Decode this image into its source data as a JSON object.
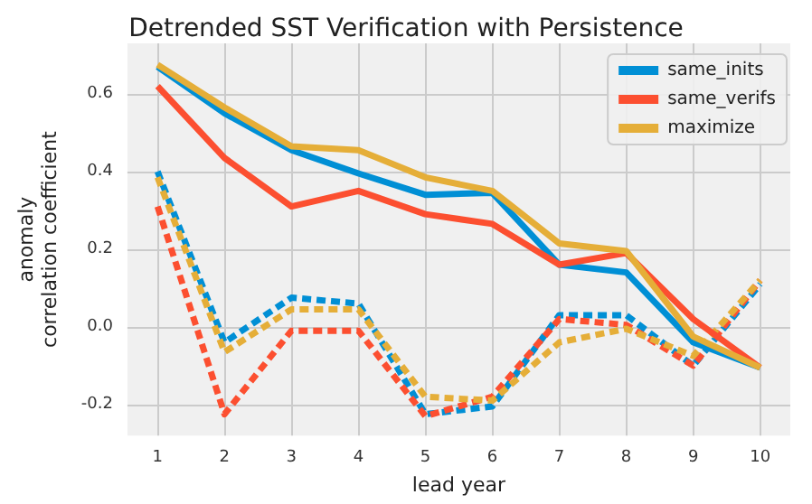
{
  "chart_data": {
    "type": "line",
    "title": "Detrended SST Verification with Persistence",
    "xlabel": "lead year",
    "ylabel": "anomaly\ncorrelation coefficient",
    "x": [
      1,
      2,
      3,
      4,
      5,
      6,
      7,
      8,
      9,
      10
    ],
    "xlim": [
      0.55,
      10.45
    ],
    "xticks": [
      1,
      2,
      3,
      4,
      5,
      6,
      7,
      8,
      9,
      10
    ],
    "ylim": [
      -0.28,
      0.73
    ],
    "yticks": [
      {
        "value": -0.2,
        "label": "-0.2"
      },
      {
        "value": 0,
        "label": "0.0"
      },
      {
        "value": 0.2,
        "label": "0.2"
      },
      {
        "value": 0.4,
        "label": "0.4"
      },
      {
        "value": 0.6,
        "label": "0.6"
      }
    ],
    "grid": true,
    "legend": "top right",
    "marker": "none",
    "series": [
      {
        "name": "same_inits",
        "color": "#008fd5",
        "line_style": "solid",
        "values": [
          0.67,
          0.55,
          0.455,
          0.395,
          0.34,
          0.345,
          0.16,
          0.14,
          -0.04,
          -0.105
        ]
      },
      {
        "name": "same_verifs",
        "color": "#fc4f30",
        "line_style": "solid",
        "values": [
          0.62,
          0.435,
          0.31,
          0.35,
          0.29,
          0.265,
          0.16,
          0.19,
          0.02,
          -0.105
        ]
      },
      {
        "name": "maximize",
        "color": "#e5ae38",
        "line_style": "solid",
        "values": [
          0.675,
          0.565,
          0.465,
          0.455,
          0.385,
          0.35,
          0.215,
          0.195,
          -0.025,
          -0.105
        ]
      },
      {
        "color": "#008fd5",
        "line_style": "dashed",
        "values": [
          0.4,
          -0.04,
          0.075,
          0.06,
          -0.225,
          -0.205,
          0.03,
          0.03,
          -0.1,
          0.11
        ]
      },
      {
        "color": "#fc4f30",
        "line_style": "dashed",
        "values": [
          0.31,
          -0.225,
          -0.01,
          -0.01,
          -0.23,
          -0.18,
          0.02,
          0.005,
          -0.1,
          0.12
        ]
      },
      {
        "color": "#e5ae38",
        "line_style": "dashed",
        "values": [
          0.385,
          -0.065,
          0.045,
          0.045,
          -0.18,
          -0.19,
          -0.04,
          -0.005,
          -0.075,
          0.12
        ]
      }
    ]
  }
}
